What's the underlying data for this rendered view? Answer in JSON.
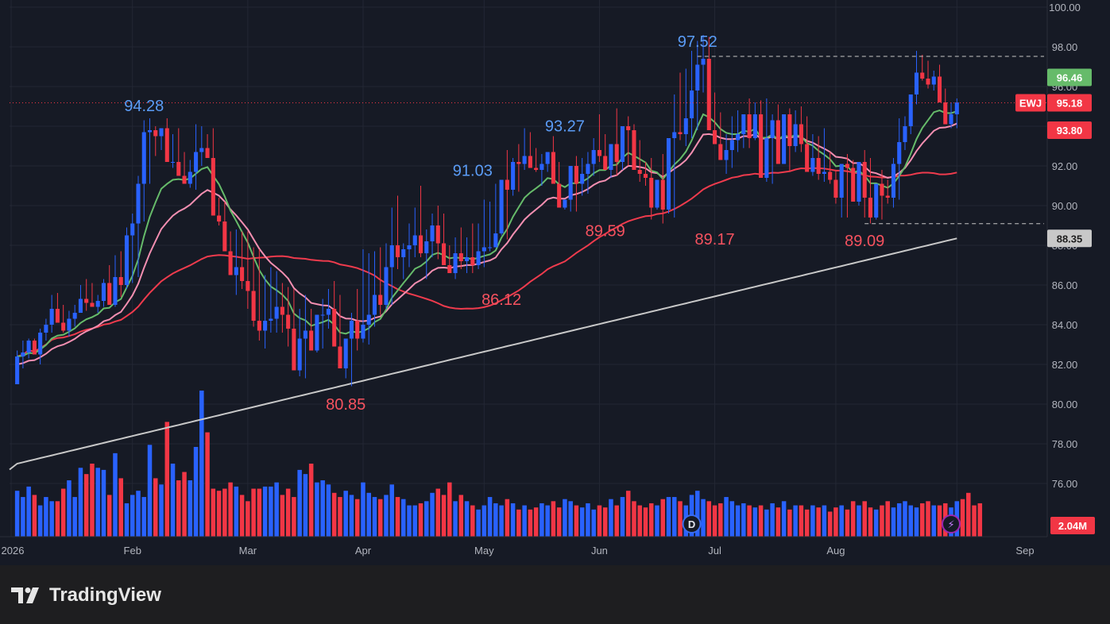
{
  "brand": {
    "name": "TradingView",
    "logo_icon": "tradingview-logo-icon"
  },
  "chart_data": {
    "type": "candlestick",
    "symbol": "EWJ",
    "y_axis": {
      "ticks": [
        "100.00",
        "98.00",
        "96.00",
        "94.00",
        "92.00",
        "90.00",
        "88.00",
        "86.00",
        "84.00",
        "82.00",
        "80.00",
        "78.00",
        "76.00"
      ],
      "range": [
        73.0,
        100.4
      ]
    },
    "x_axis": {
      "labels": [
        "2026",
        "Feb",
        "Mar",
        "Apr",
        "May",
        "Jun",
        "Jul",
        "Aug",
        "Sep"
      ]
    },
    "grid": true,
    "colors": {
      "up": "#2962ff",
      "down": "#f23645",
      "ema_fast": "#66bb6a",
      "ema_mid": "#f48fb1",
      "sma_mid": "#ef3b4d",
      "sma_long": "#c8c8c8",
      "last_price": "#f23645"
    },
    "candles": {
      "open": [
        81.0,
        82.4,
        82.6,
        83.2,
        82.5,
        83.6,
        84.0,
        84.8,
        84.1,
        83.7,
        84.3,
        84.6,
        85.3,
        85.1,
        84.9,
        85.2,
        86.1,
        85.0,
        86.4,
        86.0,
        88.5,
        89.1,
        91.1,
        93.7,
        93.8,
        93.5,
        93.9,
        92.2,
        92.2,
        91.5,
        91.1,
        91.7,
        92.7,
        92.9,
        92.4,
        89.5,
        89.2,
        87.7,
        86.5,
        86.9,
        86.2,
        85.7,
        84.2,
        83.7,
        84.2,
        84.3,
        84.9,
        84.5,
        83.8,
        81.7,
        83.3,
        83.7,
        82.7,
        84.5,
        84.5,
        84.8,
        82.9,
        81.8,
        83.3,
        84.2,
        83.3,
        84.0,
        84.5,
        85.5,
        85.0,
        86.9,
        88.0,
        87.4,
        87.8,
        88.0,
        88.5,
        87.6,
        88.2,
        89.0,
        88.1,
        87.0,
        86.6,
        87.6,
        87.2,
        87.4,
        87.0,
        87.7,
        87.9,
        87.9,
        88.6,
        91.3,
        90.8,
        92.2,
        92.1,
        92.5,
        91.9,
        91.8,
        92.1,
        92.7,
        91.1,
        89.9,
        90.3,
        92.0,
        91.1,
        91.6,
        92.1,
        92.8,
        92.5,
        91.8,
        93.1,
        92.2,
        94.0,
        93.8,
        91.8,
        91.6,
        91.4,
        89.9,
        91.3,
        89.8,
        93.4,
        93.7,
        93.6,
        94.4,
        95.8,
        97.1,
        97.4,
        93.8,
        93.1,
        92.3,
        92.8,
        93.3,
        93.6,
        94.6,
        93.4,
        94.6,
        91.4,
        93.4,
        94.3,
        92.1,
        94.6,
        93.0,
        94.1,
        93.1,
        91.7,
        92.4,
        91.6,
        91.7,
        91.3,
        90.4,
        92.1,
        91.9,
        90.2,
        92.2,
        90.4,
        89.4,
        91.1,
        90.5,
        90.4,
        92.1,
        93.2,
        94.0,
        95.6,
        96.7,
        96.4,
        96.1,
        96.5,
        95.2,
        94.1,
        94.6
      ],
      "high": [
        82.7,
        83.2,
        83.3,
        83.3,
        83.8,
        84.3,
        85.5,
        85.6,
        85.0,
        84.7,
        85.0,
        86.0,
        86.3,
        86.1,
        85.5,
        86.3,
        87.0,
        87.5,
        87.7,
        88.9,
        89.6,
        91.5,
        94.3,
        94.4,
        94.0,
        93.9,
        94.4,
        93.6,
        93.9,
        92.7,
        92.3,
        94.1,
        94.0,
        93.6,
        93.9,
        90.4,
        90.2,
        88.7,
        88.8,
        88.7,
        88.7,
        87.9,
        87.8,
        86.5,
        86.9,
        86.7,
        86.1,
        85.9,
        85.8,
        84.8,
        85.5,
        84.8,
        84.2,
        85.3,
        85.8,
        86.2,
        85.5,
        83.0,
        84.6,
        85.8,
        87.8,
        87.6,
        87.7,
        87.9,
        88.1,
        89.9,
        90.5,
        88.1,
        89.1,
        89.9,
        91.0,
        88.8,
        89.6,
        90.0,
        89.6,
        88.0,
        88.4,
        88.9,
        88.4,
        89.1,
        89.1,
        90.3,
        90.2,
        91.1,
        91.3,
        92.8,
        92.4,
        93.1,
        93.9,
        93.7,
        92.9,
        92.6,
        92.6,
        93.5,
        92.2,
        90.3,
        91.3,
        92.5,
        92.4,
        92.7,
        93.4,
        94.6,
        93.6,
        93.0,
        94.9,
        93.5,
        94.5,
        94.1,
        93.3,
        92.2,
        92.4,
        91.3,
        92.6,
        92.2,
        95.6,
        96.7,
        96.9,
        97.8,
        98.3,
        98.6,
        98.5,
        95.7,
        94.7,
        93.6,
        94.5,
        94.8,
        94.5,
        95.4,
        95.2,
        95.3,
        95.4,
        94.6,
        95.1,
        94.1,
        94.9,
        94.8,
        95.0,
        94.5,
        93.6,
        93.5,
        93.9,
        92.7,
        91.8,
        91.6,
        92.6,
        92.3,
        91.3,
        92.8,
        92.4,
        91.1,
        91.8,
        91.3,
        92.4,
        94.4,
        94.5,
        95.1,
        97.8,
        97.6,
        97.3,
        96.8,
        97.1,
        95.9,
        95.2,
        95.4
      ],
      "low": [
        81.0,
        81.8,
        82.3,
        82.7,
        82.0,
        83.2,
        83.6,
        84.1,
        83.6,
        83.4,
        83.9,
        84.6,
        84.7,
        84.9,
        84.6,
        84.9,
        85.3,
        84.9,
        85.4,
        85.8,
        86.1,
        86.4,
        89.2,
        91.1,
        92.5,
        92.8,
        93.1,
        91.9,
        91.6,
        91.2,
        90.9,
        90.8,
        92.0,
        92.5,
        91.9,
        89.0,
        88.7,
        86.7,
        85.5,
        85.8,
        84.8,
        83.9,
        83.2,
        82.8,
        83.6,
        83.6,
        83.6,
        82.9,
        83.4,
        81.4,
        81.3,
        83.1,
        82.6,
        82.8,
        83.8,
        84.3,
        82.2,
        81.3,
        80.9,
        82.7,
        83.1,
        83.0,
        83.9,
        84.5,
        84.8,
        85.0,
        86.8,
        86.3,
        86.9,
        87.4,
        87.4,
        86.3,
        87.4,
        87.3,
        87.6,
        86.7,
        86.3,
        86.8,
        86.6,
        86.6,
        86.8,
        86.9,
        87.7,
        87.9,
        88.5,
        88.3,
        90.5,
        90.7,
        91.8,
        91.9,
        91.7,
        91.0,
        91.7,
        92.1,
        90.4,
        89.8,
        89.7,
        89.7,
        90.5,
        90.6,
        91.5,
        92.2,
        92.0,
        91.4,
        91.5,
        91.8,
        92.0,
        93.1,
        91.2,
        91.0,
        89.3,
        89.8,
        89.1,
        89.6,
        89.4,
        93.3,
        93.0,
        93.4,
        93.8,
        95.7,
        96.6,
        93.5,
        92.8,
        91.6,
        91.9,
        92.7,
        92.9,
        92.9,
        93.3,
        93.1,
        91.2,
        91.1,
        93.3,
        92.1,
        91.7,
        92.7,
        92.7,
        93.0,
        91.5,
        91.3,
        91.2,
        91.1,
        90.1,
        89.4,
        89.4,
        90.5,
        90.0,
        89.4,
        89.1,
        89.3,
        89.3,
        90.1,
        89.9,
        90.3,
        92.8,
        93.6,
        95.1,
        96.3,
        95.9,
        95.8,
        95.9,
        94.5,
        93.9,
        93.9
      ],
      "close": [
        82.4,
        82.6,
        83.2,
        82.5,
        83.6,
        84.0,
        84.8,
        84.1,
        83.7,
        84.3,
        84.6,
        85.3,
        85.1,
        84.9,
        85.2,
        86.1,
        85.0,
        86.4,
        86.0,
        88.5,
        89.1,
        91.1,
        93.7,
        93.8,
        93.5,
        93.9,
        92.2,
        92.2,
        91.5,
        91.1,
        91.7,
        92.7,
        92.9,
        92.4,
        89.5,
        89.2,
        87.7,
        86.5,
        86.9,
        86.2,
        85.7,
        84.2,
        83.7,
        84.2,
        84.3,
        84.9,
        84.5,
        83.8,
        81.7,
        83.3,
        83.7,
        82.7,
        84.5,
        84.5,
        84.8,
        82.9,
        81.8,
        83.3,
        84.2,
        83.3,
        84.0,
        84.5,
        85.5,
        85.0,
        86.9,
        88.0,
        87.4,
        87.8,
        88.0,
        88.5,
        87.6,
        88.2,
        89.0,
        88.1,
        87.0,
        86.6,
        87.6,
        87.2,
        87.4,
        87.0,
        87.7,
        87.9,
        87.9,
        88.6,
        91.3,
        90.8,
        92.2,
        92.1,
        92.5,
        91.9,
        91.8,
        92.1,
        92.7,
        91.1,
        89.9,
        90.3,
        92.0,
        91.1,
        91.6,
        92.1,
        92.8,
        92.5,
        91.8,
        93.1,
        92.2,
        94.0,
        93.8,
        91.8,
        91.6,
        91.4,
        89.9,
        91.3,
        89.8,
        93.4,
        93.7,
        93.6,
        94.4,
        95.8,
        97.1,
        97.4,
        93.8,
        93.1,
        92.3,
        92.8,
        93.3,
        93.6,
        94.6,
        93.4,
        94.6,
        91.4,
        93.4,
        94.3,
        92.1,
        94.6,
        93.0,
        94.1,
        93.1,
        91.7,
        92.4,
        91.6,
        91.7,
        91.3,
        90.4,
        92.1,
        91.9,
        90.2,
        92.2,
        90.4,
        89.4,
        91.1,
        90.5,
        90.4,
        92.1,
        93.2,
        94.0,
        95.6,
        96.7,
        96.4,
        96.1,
        96.5,
        95.2,
        94.1,
        94.6,
        95.2
      ]
    },
    "volume": {
      "label": "2.04M",
      "values": [
        0.44,
        0.38,
        0.48,
        0.4,
        0.3,
        0.38,
        0.34,
        0.34,
        0.46,
        0.54,
        0.38,
        0.66,
        0.6,
        0.7,
        0.66,
        0.64,
        0.4,
        0.8,
        0.56,
        0.32,
        0.4,
        0.44,
        0.38,
        0.88,
        0.56,
        0.5,
        1.1,
        0.7,
        0.54,
        0.62,
        0.54,
        0.86,
        1.4,
        1.0,
        0.46,
        0.44,
        0.46,
        0.52,
        0.48,
        0.4,
        0.34,
        0.46,
        0.46,
        0.48,
        0.48,
        0.52,
        0.4,
        0.46,
        0.38,
        0.64,
        0.6,
        0.7,
        0.52,
        0.54,
        0.5,
        0.42,
        0.38,
        0.44,
        0.4,
        0.36,
        0.52,
        0.42,
        0.38,
        0.36,
        0.4,
        0.5,
        0.38,
        0.36,
        0.3,
        0.3,
        0.32,
        0.34,
        0.42,
        0.46,
        0.4,
        0.52,
        0.34,
        0.4,
        0.34,
        0.3,
        0.26,
        0.3,
        0.38,
        0.32,
        0.3,
        0.36,
        0.32,
        0.26,
        0.3,
        0.26,
        0.28,
        0.32,
        0.3,
        0.34,
        0.28,
        0.36,
        0.34,
        0.3,
        0.28,
        0.32,
        0.26,
        0.3,
        0.28,
        0.36,
        0.3,
        0.38,
        0.44,
        0.34,
        0.3,
        0.28,
        0.32,
        0.3,
        0.36,
        0.38,
        0.38,
        0.34,
        0.3,
        0.4,
        0.44,
        0.36,
        0.34,
        0.3,
        0.32,
        0.38,
        0.34,
        0.3,
        0.32,
        0.3,
        0.28,
        0.3,
        0.26,
        0.32,
        0.28,
        0.34,
        0.26,
        0.3,
        0.3,
        0.26,
        0.3,
        0.28,
        0.3,
        0.24,
        0.28,
        0.3,
        0.26,
        0.34,
        0.3,
        0.34,
        0.28,
        0.26,
        0.3,
        0.34,
        0.28,
        0.32,
        0.34,
        0.3,
        0.28,
        0.32,
        0.34,
        0.3,
        0.3,
        0.32,
        0.28,
        0.34,
        0.36,
        0.42,
        0.3,
        0.32
      ],
      "max": 1.4
    },
    "overlays": [
      {
        "kind": "sma_long",
        "start": 77.0,
        "end": 88.35
      },
      {
        "kind": "sma_mid_ref",
        "value": 93.8
      }
    ],
    "annotations": [
      {
        "text": "94.28",
        "index": 22,
        "value": 94.28,
        "kind": "high"
      },
      {
        "text": "80.85",
        "index": 57,
        "value": 80.85,
        "kind": "low"
      },
      {
        "text": "91.03",
        "index": 79,
        "value": 91.03,
        "kind": "high"
      },
      {
        "text": "86.12",
        "index": 84,
        "value": 86.12,
        "kind": "low"
      },
      {
        "text": "93.27",
        "index": 95,
        "value": 93.27,
        "kind": "high"
      },
      {
        "text": "89.59",
        "index": 102,
        "value": 89.59,
        "kind": "low"
      },
      {
        "text": "97.52",
        "index": 118,
        "value": 97.52,
        "kind": "high"
      },
      {
        "text": "89.17",
        "index": 121,
        "value": 89.17,
        "kind": "low"
      },
      {
        "text": "89.09",
        "index": 147,
        "value": 89.09,
        "kind": "low"
      }
    ],
    "hlines": [
      {
        "value": 97.52,
        "from": 118,
        "style": "dashed"
      },
      {
        "value": 89.09,
        "from": 147,
        "style": "dashed"
      }
    ],
    "last_price": 95.18,
    "price_tags": [
      {
        "text": "96.46",
        "value": 96.46,
        "bg": "#66bb6a",
        "fg": "#ffffff"
      },
      {
        "text": "95.18",
        "value": 95.18,
        "bg": "#f23645",
        "fg": "#ffffff"
      },
      {
        "text": "93.80",
        "value": 93.8,
        "bg": "#f23645",
        "fg": "#ffffff"
      },
      {
        "text": "88.35",
        "value": 88.35,
        "bg": "#c8c8c8",
        "fg": "#1e1e1e"
      }
    ],
    "symbol_tag": "EWJ",
    "markers": [
      {
        "icon": "dividend-icon",
        "text": "D"
      },
      {
        "icon": "lightning-icon",
        "text": "⚡"
      }
    ]
  }
}
